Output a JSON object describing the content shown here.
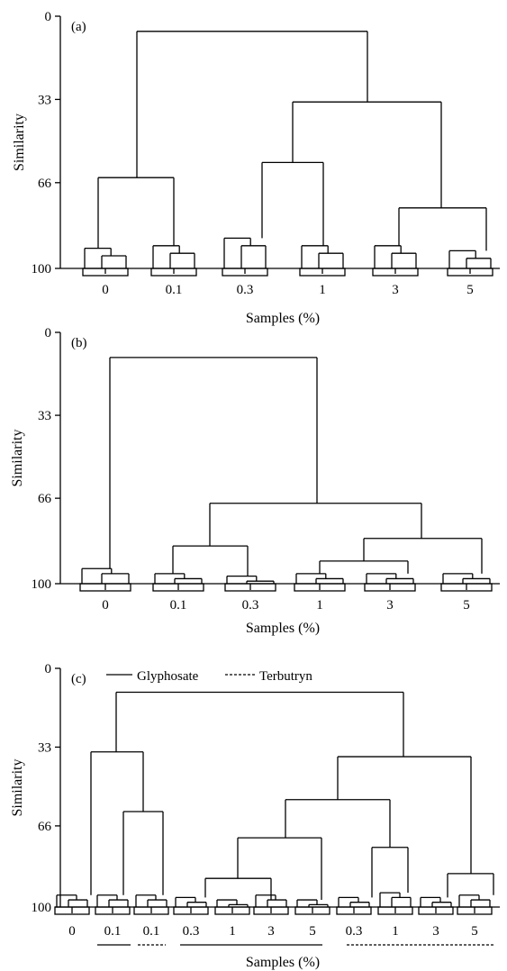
{
  "colors": {
    "ink": "#000000",
    "background": "#ffffff"
  },
  "chart_data": [
    {
      "type": "dendrogram",
      "panel_label": "(a)",
      "xlabel": "Samples (%)",
      "ylabel": "Similarity",
      "ylim": [
        0,
        100
      ],
      "y_ticks": [
        "0",
        "33",
        "66",
        "100"
      ],
      "categories": [
        "0",
        "0.1",
        "0.3",
        "1",
        "3",
        "5"
      ],
      "merges": [
        {
          "groups": [
            "0",
            "0.1"
          ],
          "similarity": 64
        },
        {
          "groups": [
            "0.3",
            "1"
          ],
          "similarity": 58
        },
        {
          "groups": [
            "3",
            "5"
          ],
          "similarity": 76
        },
        {
          "groups": [
            "0.3+1",
            "3+5"
          ],
          "similarity": 34
        },
        {
          "groups": [
            "0+0.1",
            "0.3+1+3+5"
          ],
          "similarity": 6
        }
      ]
    },
    {
      "type": "dendrogram",
      "panel_label": "(b)",
      "xlabel": "Samples (%)",
      "ylabel": "Similarity",
      "ylim": [
        0,
        100
      ],
      "y_ticks": [
        "0",
        "33",
        "66",
        "100"
      ],
      "categories": [
        "0",
        "0.1",
        "0.3",
        "1",
        "3",
        "5"
      ],
      "merges": [
        {
          "groups": [
            "0.1",
            "0.3"
          ],
          "similarity": 85
        },
        {
          "groups": [
            "1",
            "3"
          ],
          "similarity": 91
        },
        {
          "groups": [
            "1+3",
            "5"
          ],
          "similarity": 82
        },
        {
          "groups": [
            "0.1+0.3",
            "1+3+5"
          ],
          "similarity": 68
        },
        {
          "groups": [
            "0",
            "0.1+0.3+1+3+5"
          ],
          "similarity": 10
        }
      ]
    },
    {
      "type": "dendrogram",
      "panel_label": "(c)",
      "xlabel": "Samples (%)",
      "ylabel": "Similarity",
      "ylim": [
        0,
        100
      ],
      "y_ticks": [
        "0",
        "33",
        "66",
        "100"
      ],
      "legend": [
        "Glyphosate",
        "Terbutryn"
      ],
      "categories": [
        "0",
        "0.1",
        "0.1",
        "0.3",
        "1",
        "3",
        "5",
        "0.3",
        "1",
        "3",
        "5"
      ],
      "category_groups": [
        {
          "series": "Glyphosate",
          "categories": [
            "0.1"
          ]
        },
        {
          "series": "Terbutryn",
          "categories": [
            "0.1"
          ]
        },
        {
          "series": "Glyphosate",
          "categories": [
            "0.3",
            "1",
            "3",
            "5"
          ]
        },
        {
          "series": "Terbutryn",
          "categories": [
            "0.3",
            "1",
            "3",
            "5"
          ]
        }
      ],
      "merges": [
        {
          "groups": [
            "0.1 Glyphosate",
            "0.1 Terbutryn"
          ],
          "similarity": 60
        },
        {
          "groups": [
            "0",
            "0.1+0.1"
          ],
          "similarity": 35
        },
        {
          "groups": [
            "0.3 Glyphosate",
            "1 Glyphosate"
          ],
          "similarity": 88
        },
        {
          "groups": [
            "0.3+1 Glyphosate",
            "3 Glyphosate"
          ],
          "similarity": 71
        },
        {
          "groups": [
            "0.3 Terbutryn",
            "1 Terbutryn"
          ],
          "similarity": 75
        },
        {
          "groups": [
            "0.3+1+3 Glyphosate",
            "0.3+1 Terbutryn"
          ],
          "similarity": 55
        },
        {
          "groups": [
            "3 Terbutryn",
            "5 Terbutryn"
          ],
          "similarity": 86
        },
        {
          "groups": [
            "0.3-3 Glyphosate + 0.3-1 Terbutryn",
            "3+5 Terbutryn"
          ],
          "similarity": 37
        },
        {
          "groups": [
            "0+0.1+0.1",
            "rest"
          ],
          "similarity": 10
        }
      ]
    }
  ]
}
